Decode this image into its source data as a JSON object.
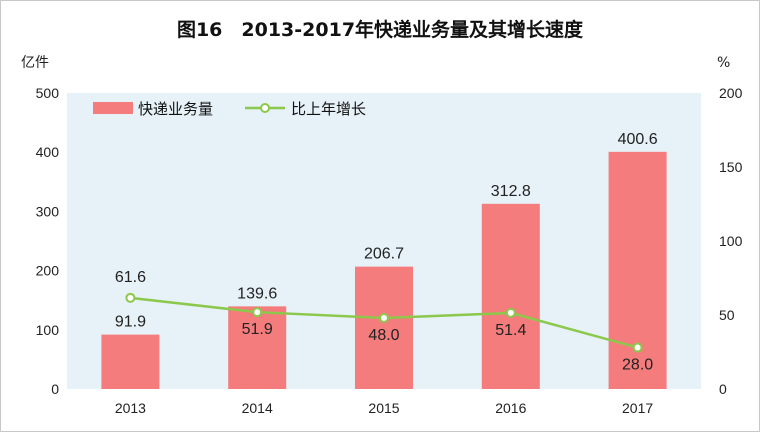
{
  "figure_title": "图16　2013-2017年快递业务量及其增长速度",
  "left_unit": "亿件",
  "right_unit": "%",
  "colors": {
    "plot_bg": "#e6f1f8",
    "bar": "#f47c7c",
    "line": "#8cc84b",
    "marker_fill": "#ffffff"
  },
  "chart_data": {
    "type": "bar+line",
    "categories": [
      "2013",
      "2014",
      "2015",
      "2016",
      "2017"
    ],
    "series": [
      {
        "name": "快递业务量",
        "type": "bar",
        "axis": "left",
        "values": [
          91.9,
          139.6,
          206.7,
          312.8,
          400.6
        ]
      },
      {
        "name": "比上年增长",
        "type": "line",
        "axis": "right",
        "values": [
          61.6,
          51.9,
          48.0,
          51.4,
          28.0
        ]
      }
    ],
    "bar_labels": [
      "91.9",
      "139.6",
      "206.7",
      "312.8",
      "400.6"
    ],
    "line_labels": [
      "61.6",
      "51.9",
      "48.0",
      "51.4",
      "28.0"
    ],
    "ylim_left": [
      0,
      500
    ],
    "ylim_right": [
      0,
      200
    ],
    "yticks_left": [
      "0",
      "100",
      "200",
      "300",
      "400",
      "500"
    ],
    "yticks_right": [
      "0",
      "50",
      "100",
      "150",
      "200"
    ],
    "legend_position": "top-left",
    "grid": false
  }
}
